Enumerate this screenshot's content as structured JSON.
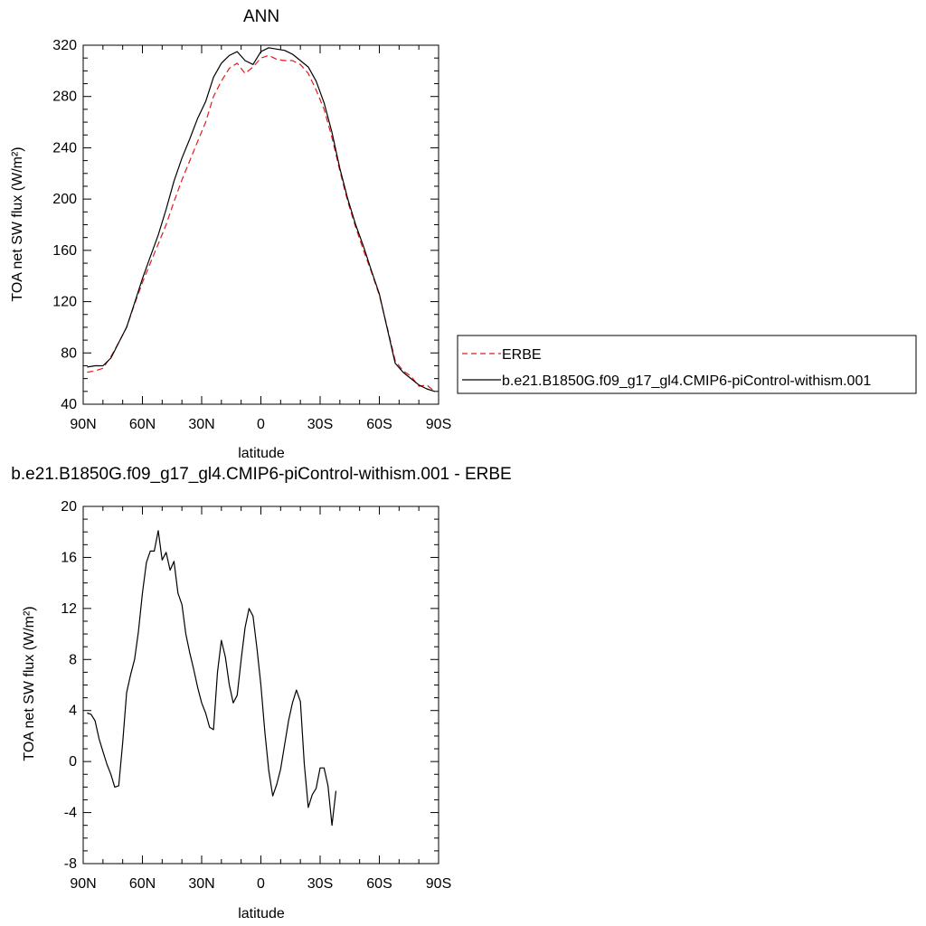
{
  "chart_data": [
    {
      "type": "line",
      "title": "ANN",
      "xlabel": "latitude",
      "ylabel": "TOA net SW flux (W/m²)",
      "xlim": [
        90,
        -90
      ],
      "ylim": [
        40,
        320
      ],
      "x_ticks": [
        {
          "value": 90,
          "label": "90N"
        },
        {
          "value": 60,
          "label": "60N"
        },
        {
          "value": 30,
          "label": "30N"
        },
        {
          "value": 0,
          "label": "0"
        },
        {
          "value": -30,
          "label": "30S"
        },
        {
          "value": -60,
          "label": "60S"
        },
        {
          "value": -90,
          "label": "90S"
        }
      ],
      "y_ticks": [
        40,
        80,
        120,
        160,
        200,
        240,
        280,
        320
      ],
      "legend_position": "right",
      "series": [
        {
          "name": "ERBE",
          "color": "#e41a1c",
          "dash": "dashed",
          "points": [
            [
              88,
              65
            ],
            [
              84,
              66
            ],
            [
              80,
              68
            ],
            [
              76,
              77
            ],
            [
              72,
              88
            ],
            [
              68,
              100
            ],
            [
              64,
              118
            ],
            [
              60,
              135
            ],
            [
              56,
              150
            ],
            [
              52,
              165
            ],
            [
              48,
              180
            ],
            [
              44,
              198
            ],
            [
              40,
              215
            ],
            [
              36,
              230
            ],
            [
              32,
              245
            ],
            [
              28,
              260
            ],
            [
              24,
              280
            ],
            [
              20,
              292
            ],
            [
              16,
              302
            ],
            [
              12,
              306
            ],
            [
              8,
              298
            ],
            [
              4,
              303
            ],
            [
              0,
              310
            ],
            [
              -4,
              312
            ],
            [
              -8,
              309
            ],
            [
              -12,
              308
            ],
            [
              -16,
              308
            ],
            [
              -20,
              305
            ],
            [
              -24,
              298
            ],
            [
              -28,
              285
            ],
            [
              -32,
              270
            ],
            [
              -36,
              248
            ],
            [
              -40,
              222
            ],
            [
              -44,
              198
            ],
            [
              -48,
              178
            ],
            [
              -52,
              160
            ],
            [
              -56,
              143
            ],
            [
              -60,
              125
            ],
            [
              -64,
              100
            ],
            [
              -68,
              74
            ],
            [
              -72,
              66
            ],
            [
              -76,
              62
            ],
            [
              -80,
              54
            ],
            [
              -84,
              55
            ],
            [
              -88,
              50
            ]
          ]
        },
        {
          "name": "b.e21.B1850G.f09_g17_gl4.CMIP6-piControl-withism.001",
          "color": "#000000",
          "dash": "solid",
          "points": [
            [
              88,
              69
            ],
            [
              84,
              70
            ],
            [
              80,
              70
            ],
            [
              76,
              76
            ],
            [
              72,
              88
            ],
            [
              68,
              100
            ],
            [
              64,
              119
            ],
            [
              60,
              138
            ],
            [
              56,
              155
            ],
            [
              52,
              172
            ],
            [
              48,
              192
            ],
            [
              44,
              214
            ],
            [
              40,
              232
            ],
            [
              36,
              247
            ],
            [
              32,
              263
            ],
            [
              28,
              276
            ],
            [
              24,
              295
            ],
            [
              20,
              306
            ],
            [
              16,
              312
            ],
            [
              12,
              315
            ],
            [
              8,
              308
            ],
            [
              4,
              305
            ],
            [
              0,
              315
            ],
            [
              -4,
              318
            ],
            [
              -8,
              317
            ],
            [
              -12,
              316
            ],
            [
              -16,
              313
            ],
            [
              -20,
              308
            ],
            [
              -24,
              303
            ],
            [
              -28,
              292
            ],
            [
              -32,
              275
            ],
            [
              -36,
              252
            ],
            [
              -40,
              224
            ],
            [
              -44,
              200
            ],
            [
              -48,
              180
            ],
            [
              -52,
              163
            ],
            [
              -56,
              144
            ],
            [
              -60,
              126
            ],
            [
              -64,
              99
            ],
            [
              -68,
              72
            ],
            [
              -72,
              65
            ],
            [
              -76,
              60
            ],
            [
              -80,
              55
            ],
            [
              -84,
              52
            ],
            [
              -88,
              50
            ]
          ]
        }
      ]
    },
    {
      "type": "line",
      "title": "b.e21.B1850G.f09_g17_gl4.CMIP6-piControl-withism.001 - ERBE",
      "xlabel": "latitude",
      "ylabel": "TOA net SW flux (W/m²)",
      "xlim": [
        90,
        -90
      ],
      "ylim": [
        -8,
        20
      ],
      "x_ticks": [
        {
          "value": 90,
          "label": "90N"
        },
        {
          "value": 60,
          "label": "60N"
        },
        {
          "value": 30,
          "label": "30N"
        },
        {
          "value": 0,
          "label": "0"
        },
        {
          "value": -30,
          "label": "30S"
        },
        {
          "value": -60,
          "label": "60S"
        },
        {
          "value": -90,
          "label": "90S"
        }
      ],
      "y_ticks": [
        -8,
        -4,
        0,
        4,
        8,
        12,
        16,
        20
      ],
      "series": [
        {
          "color": "#000000",
          "dash": "solid",
          "points": [
            [
              88,
              3.8
            ],
            [
              86,
              3.7
            ],
            [
              84,
              3.2
            ],
            [
              82,
              1.8
            ],
            [
              80,
              0.8
            ],
            [
              78,
              -0.2
            ],
            [
              76,
              -1.0
            ],
            [
              74,
              -2.0
            ],
            [
              72,
              -1.9
            ],
            [
              70,
              1.5
            ],
            [
              68,
              5.4
            ],
            [
              66,
              6.8
            ],
            [
              64,
              8.0
            ],
            [
              62,
              10.2
            ],
            [
              60,
              13.2
            ],
            [
              58,
              15.6
            ],
            [
              56,
              16.5
            ],
            [
              54,
              16.5
            ],
            [
              52,
              18.1
            ],
            [
              50,
              15.8
            ],
            [
              48,
              16.4
            ],
            [
              46,
              15.0
            ],
            [
              44,
              15.7
            ],
            [
              42,
              13.2
            ],
            [
              40,
              12.3
            ],
            [
              38,
              10.0
            ],
            [
              36,
              8.5
            ],
            [
              34,
              7.2
            ],
            [
              32,
              5.8
            ],
            [
              30,
              4.6
            ],
            [
              28,
              3.8
            ],
            [
              26,
              2.7
            ],
            [
              24,
              2.5
            ],
            [
              22,
              7.0
            ],
            [
              20,
              9.5
            ],
            [
              18,
              8.2
            ],
            [
              16,
              6.0
            ],
            [
              14,
              4.6
            ],
            [
              12,
              5.2
            ],
            [
              10,
              8.0
            ],
            [
              8,
              10.5
            ],
            [
              6,
              12.0
            ],
            [
              4,
              11.4
            ],
            [
              2,
              8.9
            ],
            [
              0,
              6.0
            ],
            [
              -2,
              2.3
            ],
            [
              -4,
              -0.7
            ],
            [
              -6,
              -2.7
            ],
            [
              -8,
              -1.8
            ],
            [
              -10,
              -0.6
            ],
            [
              -12,
              1.3
            ],
            [
              -14,
              3.2
            ],
            [
              -16,
              4.6
            ],
            [
              -18,
              5.6
            ],
            [
              -20,
              4.7
            ],
            [
              -22,
              -0.2
            ],
            [
              -24,
              -3.6
            ],
            [
              -26,
              -2.6
            ],
            [
              -28,
              -2.1
            ],
            [
              -30,
              -0.5
            ],
            [
              -32,
              -0.5
            ],
            [
              -34,
              -1.9
            ],
            [
              -36,
              -5.0
            ],
            [
              -38,
              -2.3
            ]
          ]
        }
      ]
    }
  ]
}
